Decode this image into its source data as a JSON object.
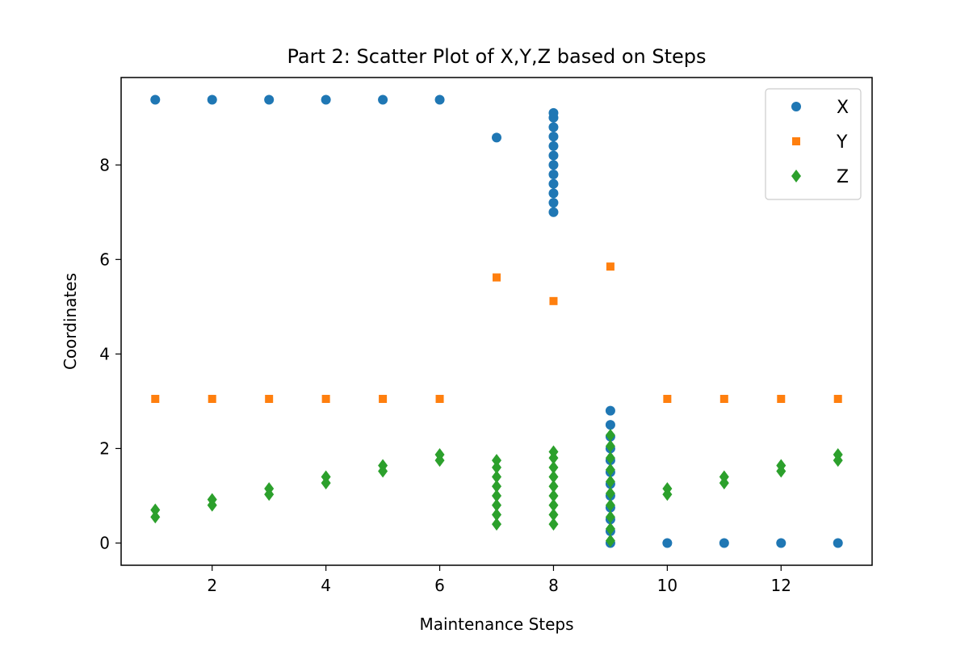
{
  "chart_data": {
    "type": "scatter",
    "title": "Part 2: Scatter Plot of X,Y,Z based on Steps",
    "xlabel": "Maintenance Steps",
    "ylabel": "Coordinates",
    "xlim": [
      0.4,
      13.6
    ],
    "ylim": [
      -0.47,
      9.85
    ],
    "xticks": [
      2,
      4,
      6,
      8,
      10,
      12
    ],
    "yticks": [
      0,
      2,
      4,
      6,
      8
    ],
    "grid": false,
    "legend": "top-right",
    "series": [
      {
        "name": "X",
        "marker": "circle",
        "color": "#1f77b4",
        "points": [
          [
            1,
            9.38
          ],
          [
            2,
            9.38
          ],
          [
            3,
            9.38
          ],
          [
            4,
            9.38
          ],
          [
            5,
            9.38
          ],
          [
            6,
            9.38
          ],
          [
            7,
            8.58
          ],
          [
            8,
            7.0
          ],
          [
            8,
            7.2
          ],
          [
            8,
            7.4
          ],
          [
            8,
            7.6
          ],
          [
            8,
            7.8
          ],
          [
            8,
            8.0
          ],
          [
            8,
            8.2
          ],
          [
            8,
            8.4
          ],
          [
            8,
            8.6
          ],
          [
            8,
            8.8
          ],
          [
            8,
            9.0
          ],
          [
            8,
            9.1
          ],
          [
            9,
            0.0
          ],
          [
            9,
            0.25
          ],
          [
            9,
            0.5
          ],
          [
            9,
            0.75
          ],
          [
            9,
            1.0
          ],
          [
            9,
            1.25
          ],
          [
            9,
            1.5
          ],
          [
            9,
            1.75
          ],
          [
            9,
            2.0
          ],
          [
            9,
            2.25
          ],
          [
            9,
            2.5
          ],
          [
            9,
            2.8
          ],
          [
            10,
            0.0
          ],
          [
            11,
            0.0
          ],
          [
            12,
            0.0
          ],
          [
            13,
            0.0
          ]
        ]
      },
      {
        "name": "Y",
        "marker": "square",
        "color": "#ff7f0e",
        "points": [
          [
            1,
            3.05
          ],
          [
            2,
            3.05
          ],
          [
            3,
            3.05
          ],
          [
            4,
            3.05
          ],
          [
            5,
            3.05
          ],
          [
            6,
            3.05
          ],
          [
            7,
            5.62
          ],
          [
            8,
            5.12
          ],
          [
            9,
            5.85
          ],
          [
            10,
            3.05
          ],
          [
            11,
            3.05
          ],
          [
            12,
            3.05
          ],
          [
            13,
            3.05
          ]
        ]
      },
      {
        "name": "Z",
        "marker": "diamond",
        "color": "#2ca02c",
        "points": [
          [
            1,
            0.55
          ],
          [
            1,
            0.7
          ],
          [
            2,
            0.8
          ],
          [
            2,
            0.92
          ],
          [
            3,
            1.03
          ],
          [
            3,
            1.15
          ],
          [
            4,
            1.27
          ],
          [
            4,
            1.4
          ],
          [
            5,
            1.52
          ],
          [
            5,
            1.64
          ],
          [
            6,
            1.75
          ],
          [
            6,
            1.87
          ],
          [
            7,
            0.4
          ],
          [
            7,
            0.6
          ],
          [
            7,
            0.8
          ],
          [
            7,
            1.0
          ],
          [
            7,
            1.2
          ],
          [
            7,
            1.4
          ],
          [
            7,
            1.6
          ],
          [
            7,
            1.75
          ],
          [
            8,
            0.4
          ],
          [
            8,
            0.6
          ],
          [
            8,
            0.8
          ],
          [
            8,
            1.0
          ],
          [
            8,
            1.2
          ],
          [
            8,
            1.4
          ],
          [
            8,
            1.6
          ],
          [
            8,
            1.8
          ],
          [
            8,
            1.93
          ],
          [
            9,
            0.05
          ],
          [
            9,
            0.3
          ],
          [
            9,
            0.55
          ],
          [
            9,
            0.8
          ],
          [
            9,
            1.05
          ],
          [
            9,
            1.3
          ],
          [
            9,
            1.55
          ],
          [
            9,
            1.8
          ],
          [
            9,
            2.05
          ],
          [
            9,
            2.28
          ],
          [
            10,
            1.03
          ],
          [
            10,
            1.15
          ],
          [
            11,
            1.27
          ],
          [
            11,
            1.4
          ],
          [
            12,
            1.52
          ],
          [
            12,
            1.64
          ],
          [
            13,
            1.75
          ],
          [
            13,
            1.87
          ]
        ]
      }
    ]
  }
}
